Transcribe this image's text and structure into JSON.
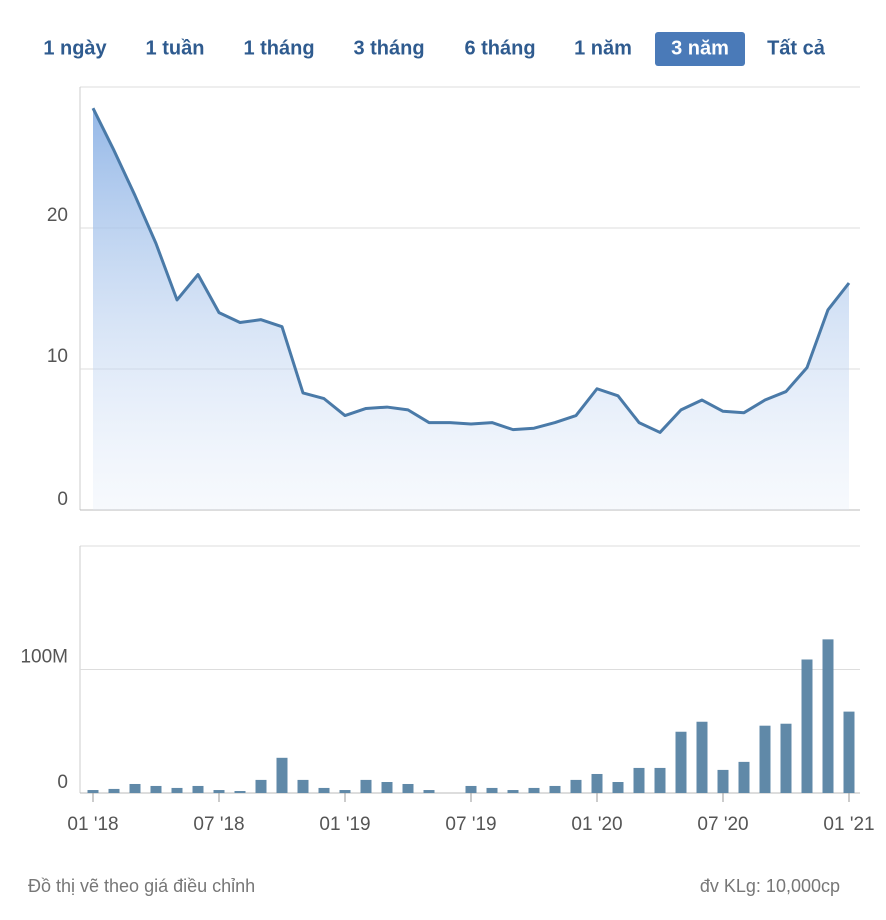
{
  "range_buttons": [
    "1 ngày",
    "1 tuần",
    "1 tháng",
    "3 tháng",
    "6 tháng",
    "1 năm",
    "3 năm",
    "Tất cả"
  ],
  "active_button": 6,
  "footnotes": {
    "left": "Đồ thị vẽ theo giá điều chỉnh",
    "right": "đv KLg: 10,000cp"
  },
  "chart_data": [
    {
      "type": "area",
      "color": "#4a7aa8",
      "ylim": [
        0,
        30
      ],
      "yticks": [
        0,
        10,
        20
      ],
      "grid": true,
      "values": [
        28.5,
        25.5,
        22.3,
        18.9,
        14.9,
        16.7,
        14.0,
        13.3,
        13.5,
        13.0,
        8.3,
        7.9,
        6.7,
        7.2,
        7.3,
        7.1,
        6.2,
        6.2,
        6.1,
        6.2,
        5.7,
        5.8,
        6.2,
        6.7,
        8.6,
        8.1,
        6.2,
        5.5,
        7.1,
        7.8,
        7.0,
        6.9,
        7.8,
        8.4,
        10.1,
        14.2,
        16.1
      ]
    },
    {
      "type": "bar",
      "color": "#6089a8",
      "ylim": [
        0,
        200
      ],
      "yticks": [
        0,
        {
          "value": 100,
          "label": "100M"
        }
      ],
      "grid": true,
      "categories": [
        "01 '18",
        null,
        null,
        null,
        null,
        null,
        "07 '18",
        null,
        null,
        null,
        null,
        null,
        "01 '19",
        null,
        null,
        null,
        null,
        null,
        "07 '19",
        null,
        null,
        null,
        null,
        null,
        "01 '20",
        null,
        null,
        null,
        null,
        null,
        "07 '20",
        null,
        null,
        null,
        null,
        null,
        "01 '21"
      ],
      "values": [
        2.4,
        3.3,
        7.3,
        5.7,
        4.1,
        5.7,
        2.4,
        1.6,
        10.6,
        28.5,
        10.6,
        4.1,
        2.4,
        10.6,
        8.9,
        7.3,
        2.4,
        0,
        5.7,
        4.1,
        2.4,
        4.1,
        5.7,
        10.6,
        15.4,
        8.9,
        20.3,
        20.3,
        49.6,
        57.7,
        18.7,
        25.2,
        54.5,
        56.1,
        108.1,
        124.4,
        65.9
      ]
    }
  ]
}
